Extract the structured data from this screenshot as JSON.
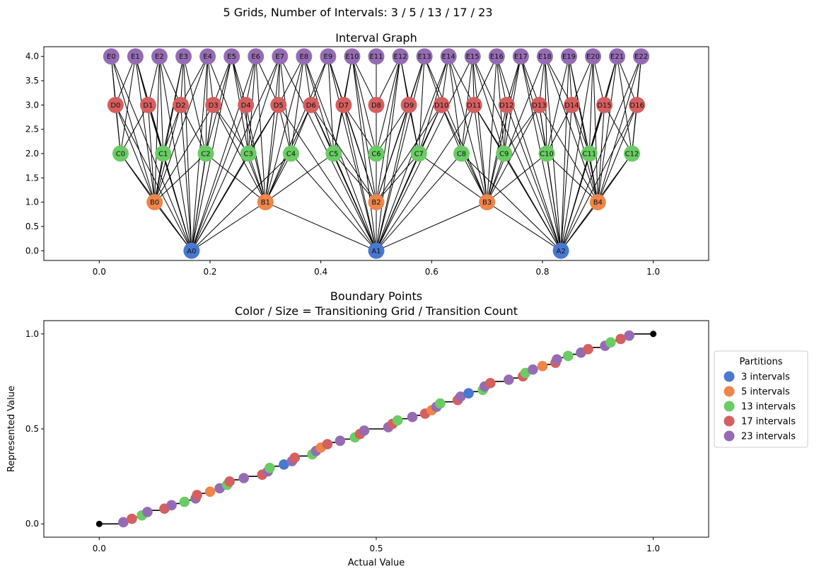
{
  "suptitle": "5 Grids, Number of Intervals: 3 / 5 / 13 / 17 / 23",
  "colors": {
    "grid3": "#4878cf",
    "grid5": "#ee854a",
    "grid13": "#6acc64",
    "grid17": "#d65f5f",
    "grid23": "#956cb4",
    "edge": "#000000",
    "endpoint": "#000000"
  },
  "chart_data": [
    {
      "type": "network",
      "title": "Interval Graph",
      "xlabel": "",
      "ylabel": "",
      "xlim": [
        -0.1,
        1.1
      ],
      "ylim": [
        -0.2,
        4.2
      ],
      "xticks": [
        "0.0",
        "0.2",
        "0.4",
        "0.6",
        "0.8",
        "1.0"
      ],
      "yticks": [
        "0.0",
        "0.5",
        "1.0",
        "1.5",
        "2.0",
        "2.5",
        "3.0",
        "3.5",
        "4.0"
      ],
      "levels": [
        {
          "prefix": "A",
          "intervals": 3,
          "y": 0
        },
        {
          "prefix": "B",
          "intervals": 5,
          "y": 1
        },
        {
          "prefix": "C",
          "intervals": 13,
          "y": 2
        },
        {
          "prefix": "D",
          "intervals": 17,
          "y": 3
        },
        {
          "prefix": "E",
          "intervals": 23,
          "y": 4
        }
      ],
      "edge_rule": "edges connect nodes of different levels whose intervals overlap",
      "node_labels": {
        "A": [
          "A0",
          "A1",
          "A2"
        ],
        "B": [
          "B0",
          "B1",
          "B2",
          "B3",
          "B4"
        ],
        "C": [
          "C0",
          "C1",
          "C2",
          "C3",
          "C4",
          "C5",
          "C6",
          "C7",
          "C8",
          "C9",
          "C10",
          "C11",
          "C12"
        ],
        "D": [
          "D0",
          "D1",
          "D2",
          "D3",
          "D4",
          "D5",
          "D6",
          "D7",
          "D8",
          "D9",
          "D10",
          "D11",
          "D12",
          "D13",
          "D14",
          "D15",
          "D16"
        ],
        "E": [
          "E0",
          "E1",
          "E2",
          "E3",
          "E4",
          "E5",
          "E6",
          "E7",
          "E8",
          "E9",
          "E10",
          "E11",
          "E12",
          "E13",
          "E14",
          "E15",
          "E16",
          "E17",
          "E18",
          "E19",
          "E20",
          "E21",
          "E22"
        ]
      }
    },
    {
      "type": "scatter",
      "title": "Boundary Points",
      "subtitle": "Color / Size = Transitioning Grid / Transition Count",
      "xlabel": "Actual Value",
      "ylabel": "Represented Value",
      "xlim": [
        -0.1,
        1.1
      ],
      "ylim": [
        -0.07,
        1.07
      ],
      "xticks": [
        "0.0",
        "0.5",
        "1.0"
      ],
      "yticks": [
        "0.0",
        "0.5",
        "1.0"
      ],
      "legend_title": "Partitions",
      "legend_position": "outside-right",
      "series": [
        {
          "name": "3 intervals",
          "intervals": 3
        },
        {
          "name": "5 intervals",
          "intervals": 5
        },
        {
          "name": "13 intervals",
          "intervals": 13
        },
        {
          "name": "17 intervals",
          "intervals": 17
        },
        {
          "name": "23 intervals",
          "intervals": 23
        }
      ],
      "endpoints": [
        [
          0,
          0
        ],
        [
          1,
          1
        ]
      ]
    }
  ]
}
